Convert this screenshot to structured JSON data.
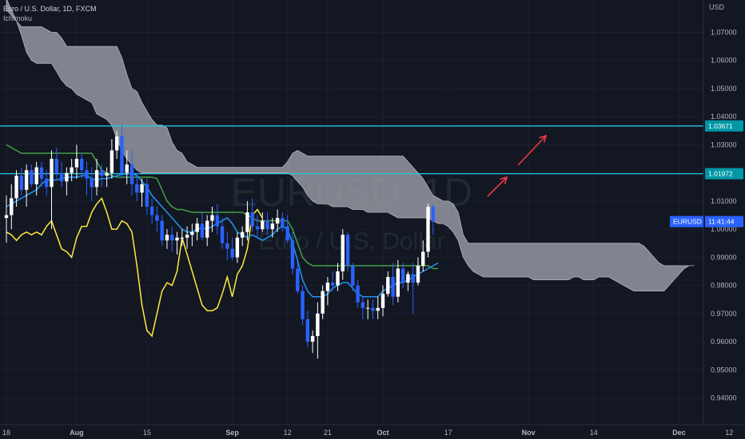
{
  "header": {
    "symbol_line": "Euro / U.S. Dollar, 1D, FXCM",
    "indicator": "Ichimoku"
  },
  "axis": {
    "currency": "USD"
  },
  "watermark": {
    "ticker": "EURUSD, 1D",
    "name": "Euro / U.S. Dollar"
  },
  "price_tags": {
    "symbol": "EURUSD",
    "countdown": "11:41:44",
    "level_upper": "1.03671",
    "level_lower": "1.01972"
  },
  "colors": {
    "background": "#131722",
    "bull": "#ffffff",
    "bear": "#2962ff",
    "conversion": "#2196f3",
    "base": "#43a047",
    "lagging": "#ffeb3b",
    "cloud": "#9598a1",
    "hline": "#26c6da",
    "arrow": "#f23645"
  },
  "chart_data": {
    "type": "candlestick",
    "y_ticks": [
      "1.07000",
      "1.06000",
      "1.05000",
      "1.04000",
      "1.03000",
      "1.02000",
      "1.01000",
      "1.00000",
      "0.99000",
      "0.98000",
      "0.97000",
      "0.96000",
      "0.95000",
      "0.94000"
    ],
    "ylim": [
      0.9305,
      1.0815
    ],
    "x_ticks": [
      {
        "label": "18",
        "day": 0
      },
      {
        "label": "Aug",
        "day": 14
      },
      {
        "label": "15",
        "day": 28
      },
      {
        "label": "Sep",
        "day": 45
      },
      {
        "label": "12",
        "day": 56
      },
      {
        "label": "21",
        "day": 64
      },
      {
        "label": "Oct",
        "day": 75
      },
      {
        "label": "17",
        "day": 88
      },
      {
        "label": "Nov",
        "day": 104
      },
      {
        "label": "14",
        "day": 117
      },
      {
        "label": "Dec",
        "day": 134
      },
      {
        "label": "12",
        "day": 144
      }
    ],
    "horizontal_levels": [
      1.03671,
      1.01972
    ],
    "last_price": 1.0027,
    "candles": [
      [
        1.004,
        1.012,
        0.9952,
        1.005
      ],
      [
        1.005,
        1.016,
        1.0,
        1.011
      ],
      [
        1.011,
        1.021,
        1.008,
        1.019
      ],
      [
        1.019,
        1.022,
        1.012,
        1.014
      ],
      [
        1.014,
        1.023,
        1.008,
        1.021
      ],
      [
        1.021,
        1.023,
        1.015,
        1.016
      ],
      [
        1.016,
        1.024,
        1.012,
        1.022
      ],
      [
        1.022,
        1.024,
        1.015,
        1.018
      ],
      [
        1.018,
        1.021,
        1.012,
        1.015
      ],
      [
        1.015,
        1.028,
        1.0,
        1.025
      ],
      [
        1.025,
        1.029,
        1.018,
        1.02
      ],
      [
        1.02,
        1.024,
        1.015,
        1.017
      ],
      [
        1.017,
        1.022,
        1.012,
        1.02
      ],
      [
        1.02,
        1.025,
        1.017,
        1.022
      ],
      [
        1.022,
        1.03,
        1.018,
        1.025
      ],
      [
        1.025,
        1.027,
        1.018,
        1.021
      ],
      [
        1.021,
        1.024,
        1.012,
        1.018
      ],
      [
        1.018,
        1.022,
        1.01,
        1.015
      ],
      [
        1.015,
        1.025,
        1.012,
        1.021
      ],
      [
        1.021,
        1.023,
        1.015,
        1.019
      ],
      [
        1.019,
        1.022,
        1.015,
        1.02
      ],
      [
        1.02,
        1.032,
        1.018,
        1.028
      ],
      [
        1.028,
        1.035,
        1.025,
        1.033
      ],
      [
        1.033,
        1.037,
        1.018,
        1.02
      ],
      [
        1.02,
        1.028,
        1.016,
        1.023
      ],
      [
        1.023,
        1.028,
        1.012,
        1.016
      ],
      [
        1.016,
        1.02,
        1.01,
        1.013
      ],
      [
        1.013,
        1.018,
        1.008,
        1.016
      ],
      [
        1.016,
        1.018,
        1.005,
        1.008
      ],
      [
        1.008,
        1.011,
        1.002,
        1.005
      ],
      [
        1.005,
        1.008,
        0.999,
        1.003
      ],
      [
        1.003,
        1.005,
        0.994,
        0.996
      ],
      [
        0.996,
        1.0,
        0.993,
        0.998
      ],
      [
        0.998,
        1.001,
        0.992,
        0.996
      ],
      [
        0.996,
        0.999,
        0.991,
        0.997
      ],
      [
        0.997,
        1.0,
        0.994,
        0.997
      ],
      [
        0.997,
        1.001,
        0.993,
        0.998
      ],
      [
        0.998,
        1.002,
        0.994,
        0.999
      ],
      [
        0.999,
        1.004,
        0.996,
        1.002
      ],
      [
        1.002,
        1.006,
        0.996,
        0.997
      ],
      [
        0.997,
        1.005,
        0.994,
        1.003
      ],
      [
        1.003,
        1.008,
        0.999,
        1.005
      ],
      [
        1.005,
        1.009,
        0.998,
        1.001
      ],
      [
        1.001,
        1.004,
        0.993,
        0.995
      ],
      [
        0.995,
        0.999,
        0.989,
        0.993
      ],
      [
        0.993,
        0.997,
        0.989,
        0.99
      ],
      [
        0.99,
        0.999,
        0.988,
        0.997
      ],
      [
        0.997,
        1.001,
        0.994,
        0.999
      ],
      [
        0.999,
        1.01,
        0.996,
        1.006
      ],
      [
        1.006,
        1.011,
        0.999,
        1.001
      ],
      [
        1.001,
        1.005,
        0.997,
        1.0
      ],
      [
        1.0,
        1.006,
        0.999,
        1.003
      ],
      [
        1.003,
        1.006,
        0.998,
        1.0
      ],
      [
        1.0,
        1.004,
        0.997,
        1.002
      ],
      [
        1.002,
        1.007,
        0.999,
        1.004
      ],
      [
        1.004,
        1.006,
        0.999,
        1.001
      ],
      [
        1.001,
        1.005,
        0.995,
        0.996
      ],
      [
        0.996,
        0.999,
        0.984,
        0.986
      ],
      [
        0.986,
        0.988,
        0.977,
        0.978
      ],
      [
        0.978,
        0.98,
        0.966,
        0.968
      ],
      [
        0.968,
        0.971,
        0.958,
        0.96
      ],
      [
        0.96,
        0.964,
        0.956,
        0.962
      ],
      [
        0.962,
        0.974,
        0.954,
        0.97
      ],
      [
        0.97,
        0.98,
        0.968,
        0.978
      ],
      [
        0.978,
        0.983,
        0.973,
        0.981
      ],
      [
        0.981,
        0.985,
        0.978,
        0.98
      ],
      [
        0.98,
        0.988,
        0.978,
        0.985
      ],
      [
        0.985,
        1.0,
        0.982,
        0.998
      ],
      [
        0.998,
        0.999,
        0.985,
        0.987
      ],
      [
        0.987,
        0.988,
        0.978,
        0.98
      ],
      [
        0.98,
        0.982,
        0.972,
        0.974
      ],
      [
        0.974,
        0.976,
        0.968,
        0.972
      ],
      [
        0.972,
        0.975,
        0.968,
        0.972
      ],
      [
        0.972,
        0.975,
        0.968,
        0.971
      ],
      [
        0.971,
        0.976,
        0.968,
        0.972
      ],
      [
        0.972,
        0.98,
        0.969,
        0.977
      ],
      [
        0.977,
        0.985,
        0.976,
        0.983
      ],
      [
        0.983,
        0.988,
        0.973,
        0.976
      ],
      [
        0.976,
        0.989,
        0.974,
        0.986
      ],
      [
        0.986,
        0.988,
        0.979,
        0.981
      ],
      [
        0.981,
        0.985,
        0.978,
        0.984
      ],
      [
        0.984,
        0.988,
        0.97,
        0.981
      ],
      [
        0.981,
        0.99,
        0.98,
        0.987
      ],
      [
        0.987,
        0.996,
        0.985,
        0.992
      ],
      [
        0.992,
        1.009,
        0.99,
        1.008
      ],
      [
        1.008,
        1.009,
        0.998,
        1.0027
      ]
    ],
    "conversion_line": [
      1.008,
      1.009,
      1.01,
      1.011,
      1.012,
      1.013,
      1.014,
      1.016,
      1.0175,
      1.0175,
      1.0175,
      1.018,
      1.0185,
      1.0185,
      1.0185,
      1.019,
      1.019,
      1.018,
      1.0175,
      1.018,
      1.018,
      1.0185,
      1.019,
      1.0195,
      1.0195,
      1.02,
      1.019,
      1.017,
      1.015,
      1.012,
      1.01,
      1.008,
      1.006,
      1.004,
      1.002,
      1.0,
      0.999,
      0.999,
      1.0,
      1.0005,
      1.0,
      1.001,
      1.002,
      1.003,
      1.004,
      1.002,
      0.999,
      0.998,
      0.997,
      0.998,
      0.997,
      0.996,
      0.997,
      0.998,
      1.0,
      1.001,
      1.0,
      0.995,
      0.989,
      0.982,
      0.978,
      0.976,
      0.976,
      0.976,
      0.977,
      0.979,
      0.98,
      0.981,
      0.981,
      0.979,
      0.977,
      0.976,
      0.976,
      0.976,
      0.976,
      0.978,
      0.979,
      0.98,
      0.981,
      0.981,
      0.982,
      0.983,
      0.984,
      0.985,
      0.986,
      0.987,
      0.988
    ],
    "base_line": [
      1.03,
      1.029,
      1.028,
      1.027,
      1.027,
      1.027,
      1.027,
      1.027,
      1.027,
      1.027,
      1.027,
      1.027,
      1.027,
      1.027,
      1.027,
      1.027,
      1.027,
      1.027,
      1.024,
      1.021,
      1.02,
      1.019,
      1.0185,
      1.0185,
      1.0185,
      1.0185,
      1.0185,
      1.0185,
      1.0185,
      1.0185,
      1.018,
      1.014,
      1.01,
      1.008,
      1.007,
      1.007,
      1.0065,
      1.006,
      1.006,
      1.006,
      1.006,
      1.006,
      1.006,
      1.006,
      1.006,
      1.006,
      1.006,
      1.006,
      1.005,
      1.004,
      1.003,
      1.003,
      1.003,
      1.003,
      1.003,
      1.003,
      1.003,
      1.0,
      0.995,
      0.99,
      0.988,
      0.987,
      0.987,
      0.987,
      0.987,
      0.987,
      0.987,
      0.987,
      0.987,
      0.987,
      0.987,
      0.987,
      0.987,
      0.987,
      0.987,
      0.987,
      0.987,
      0.987,
      0.987,
      0.987,
      0.987,
      0.987,
      0.987,
      0.987,
      0.987,
      0.986,
      0.986
    ],
    "lagging_span": [
      0.999,
      0.998,
      0.996,
      0.998,
      0.999,
      0.998,
      0.999,
      0.998,
      1.001,
      1.003,
      0.998,
      0.993,
      0.992,
      0.99,
      0.997,
      1.001,
      1.001,
      1.006,
      1.009,
      1.011,
      1.006,
      1.0,
      1.0,
      1.003,
      1.002,
      0.999,
      0.987,
      0.973,
      0.964,
      0.962,
      0.97,
      0.978,
      0.981,
      0.98,
      0.985,
      0.997,
      0.991,
      0.985,
      0.979,
      0.973,
      0.971,
      0.971,
      0.972,
      0.977,
      0.983,
      0.976,
      0.984,
      0.987,
      0.993,
      1.005,
      1.007,
      1.004
    ],
    "cloud_upper": [
      1.078,
      1.076,
      1.074,
      1.072,
      1.072,
      1.072,
      1.072,
      1.072,
      1.071,
      1.07,
      1.07,
      1.068,
      1.065,
      1.065,
      1.065,
      1.065,
      1.065,
      1.065,
      1.065,
      1.065,
      1.065,
      1.065,
      1.065,
      1.061,
      1.055,
      1.05,
      1.049,
      1.045,
      1.042,
      1.039,
      1.037,
      1.037,
      1.036,
      1.031,
      1.028,
      1.027,
      1.024,
      1.023,
      1.022,
      1.022,
      1.022,
      1.022,
      1.022,
      1.022,
      1.022,
      1.022,
      1.022,
      1.022,
      1.022,
      1.022,
      1.022,
      1.022,
      1.022,
      1.022,
      1.022,
      1.022,
      1.024,
      1.027,
      1.028,
      1.027,
      1.026,
      1.026,
      1.026,
      1.026,
      1.026,
      1.026,
      1.026,
      1.026,
      1.026,
      1.026,
      1.026,
      1.026,
      1.026,
      1.026,
      1.026,
      1.026,
      1.026,
      1.026,
      1.026,
      1.026,
      1.024,
      1.022,
      1.02,
      1.018,
      1.015,
      1.012,
      1.011,
      1.01,
      1.01,
      1.009,
      1.006,
      0.998,
      0.995,
      0.995,
      0.995,
      0.995,
      0.995,
      0.995,
      0.995,
      0.995,
      0.995,
      0.995,
      0.995,
      0.995,
      0.995,
      0.995,
      0.995,
      0.995,
      0.995,
      0.995,
      0.995,
      0.995,
      0.995,
      0.995,
      0.995,
      0.995,
      0.995,
      0.995,
      0.995,
      0.995,
      0.995,
      0.995,
      0.995,
      0.995,
      0.995,
      0.995,
      0.995,
      0.994,
      0.992,
      0.99,
      0.988,
      0.987,
      0.987,
      0.987
    ],
    "cloud_lower": [
      1.082,
      1.078,
      1.074,
      1.069,
      1.063,
      1.06,
      1.059,
      1.059,
      1.059,
      1.059,
      1.056,
      1.053,
      1.051,
      1.05,
      1.048,
      1.047,
      1.046,
      1.045,
      1.041,
      1.04,
      1.039,
      1.037,
      1.032,
      1.028,
      1.025,
      1.023,
      1.021,
      1.02,
      1.02,
      1.02,
      1.02,
      1.02,
      1.02,
      1.02,
      1.02,
      1.02,
      1.02,
      1.02,
      1.02,
      1.02,
      1.02,
      1.02,
      1.02,
      1.02,
      1.02,
      1.02,
      1.02,
      1.02,
      1.02,
      1.02,
      1.02,
      1.02,
      1.02,
      1.02,
      1.02,
      1.02,
      1.02,
      1.019,
      1.017,
      1.015,
      1.012,
      1.01,
      1.009,
      1.009,
      1.009,
      1.008,
      1.008,
      1.008,
      1.008,
      1.007,
      1.007,
      1.007,
      1.006,
      1.006,
      1.006,
      1.006,
      1.006,
      1.005,
      1.004,
      1.004,
      1.004,
      1.004,
      1.004,
      1.004,
      1.004,
      1.003,
      1.002,
      1.002,
      1.001,
      0.999,
      0.996,
      0.99,
      0.987,
      0.985,
      0.984,
      0.983,
      0.983,
      0.983,
      0.983,
      0.983,
      0.983,
      0.983,
      0.983,
      0.983,
      0.983,
      0.982,
      0.982,
      0.982,
      0.982,
      0.982,
      0.982,
      0.982,
      0.982,
      0.983,
      0.983,
      0.982,
      0.982,
      0.982,
      0.983,
      0.983,
      0.983,
      0.982,
      0.981,
      0.98,
      0.979,
      0.978,
      0.978,
      0.978,
      0.978,
      0.978,
      0.978,
      0.978,
      0.98,
      0.982,
      0.984,
      0.986,
      0.987,
      0.987
    ]
  }
}
